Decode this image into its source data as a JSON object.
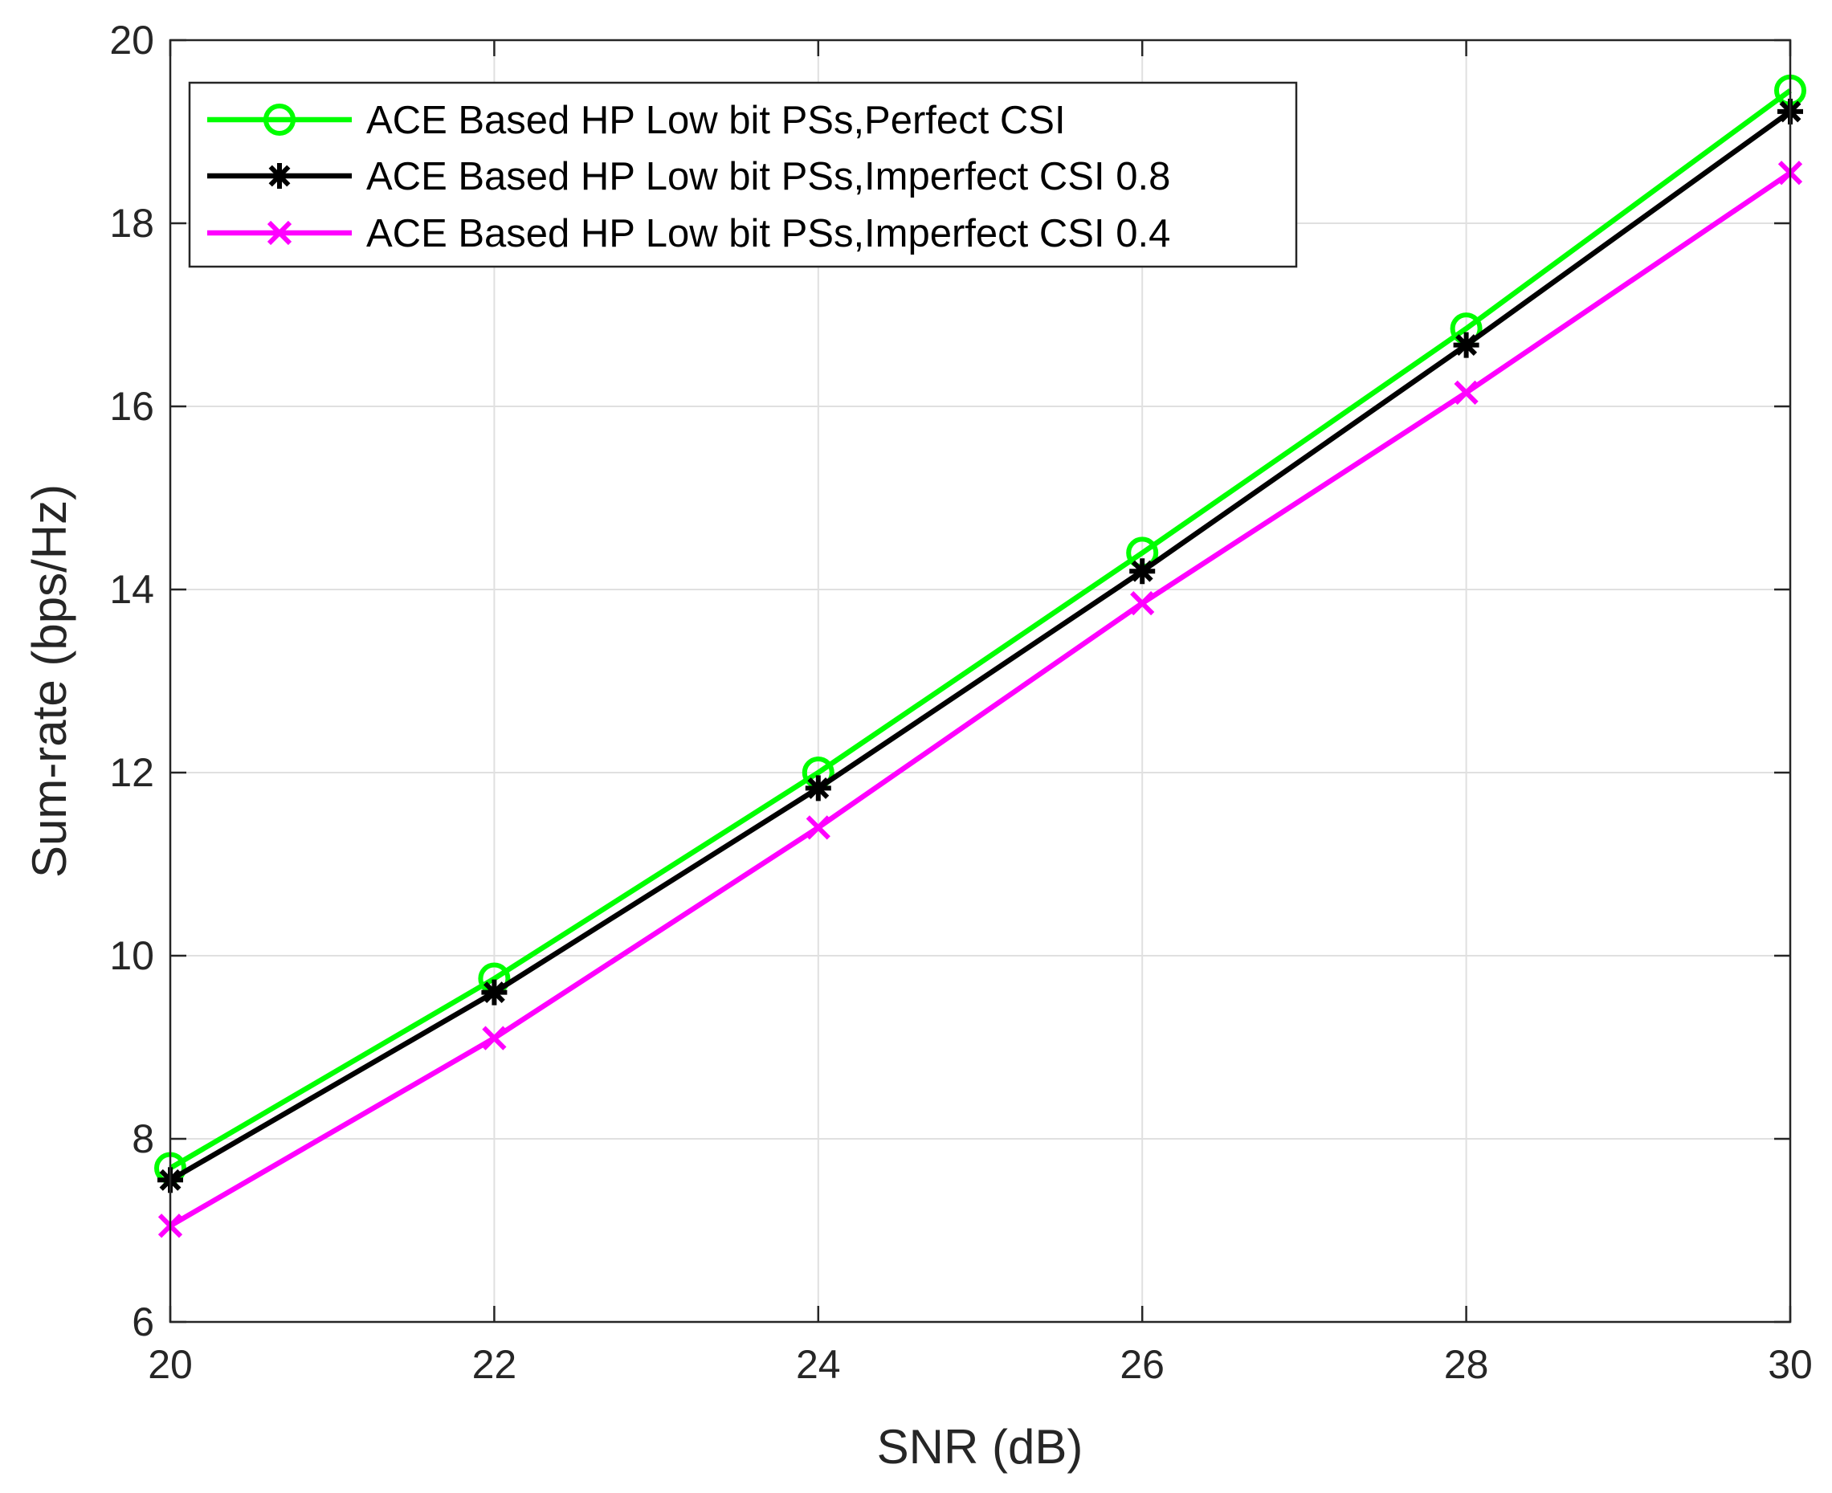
{
  "chart_data": {
    "type": "line",
    "title": "",
    "xlabel": "SNR (dB)",
    "ylabel": "Sum-rate (bps/Hz)",
    "x": [
      20,
      22,
      24,
      26,
      28,
      30
    ],
    "xlim": [
      20,
      30
    ],
    "ylim": [
      6,
      20
    ],
    "xticks": [
      "20",
      "22",
      "24",
      "26",
      "28",
      "30"
    ],
    "yticks": [
      "6",
      "8",
      "10",
      "12",
      "14",
      "16",
      "18",
      "20"
    ],
    "grid": true,
    "legend_position": "top-left",
    "series": [
      {
        "name": "ACE Based HP Low bit PSs,Perfect CSI",
        "color": "#00ff00",
        "marker": "circle",
        "values": [
          7.68,
          9.75,
          12.0,
          14.4,
          16.85,
          19.45
        ]
      },
      {
        "name": "ACE Based HP Low bit PSs,Imperfect CSI 0.8",
        "color": "#000000",
        "marker": "asterisk",
        "values": [
          7.55,
          9.6,
          11.83,
          14.2,
          16.67,
          19.22
        ]
      },
      {
        "name": "ACE Based HP Low bit PSs,Imperfect CSI 0.4",
        "color": "#ff00ff",
        "marker": "x",
        "values": [
          7.05,
          9.1,
          11.4,
          13.85,
          16.15,
          18.55
        ]
      }
    ]
  }
}
